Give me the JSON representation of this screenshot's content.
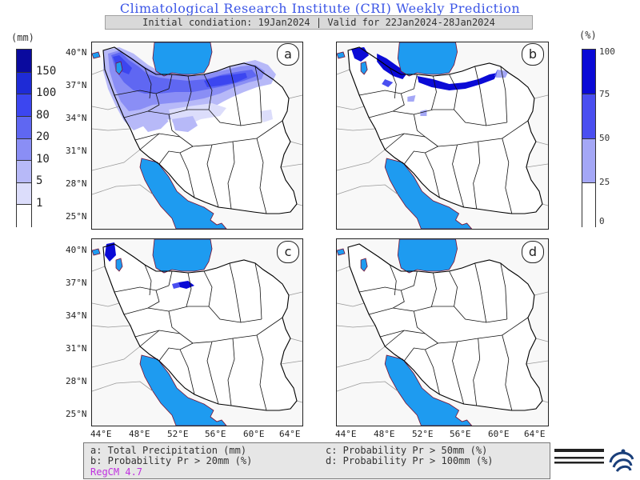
{
  "header": {
    "title": "Climatological Research Institute (CRI) Weekly Prediction",
    "subtitle": "Initial condiation: 19Jan2024 | Valid for 22Jan2024-28Jan2024"
  },
  "colorbar_left": {
    "unit": "(mm)",
    "labels": [
      "150",
      "100",
      "80",
      "20",
      "10",
      "5",
      "1"
    ],
    "colors": [
      "#0a0a9e",
      "#1e2bd6",
      "#3c46f0",
      "#5f67f2",
      "#8a8ef5",
      "#b7b9f8",
      "#dcddfb",
      "#ffffff"
    ]
  },
  "colorbar_right": {
    "unit": "(%)",
    "labels": [
      "100",
      "75",
      "50",
      "25",
      "0"
    ],
    "colors": [
      "#0a0ad6",
      "#4a4ff0",
      "#a4a7f6",
      "#ffffff"
    ]
  },
  "panels": {
    "a": {
      "label": "a"
    },
    "b": {
      "label": "b"
    },
    "c": {
      "label": "c"
    },
    "d": {
      "label": "d"
    }
  },
  "axes": {
    "lat_labels": [
      "40°N",
      "37°N",
      "34°N",
      "31°N",
      "28°N",
      "25°N"
    ],
    "lon_labels": [
      "44°E",
      "48°E",
      "52°E",
      "56°E",
      "60°E",
      "64°E"
    ]
  },
  "legend": {
    "a": "a: Total Precipitation (mm)",
    "b": "b: Probability Pr > 20mm (%)",
    "c": "c: Probability Pr > 50mm (%)",
    "d": "d: Probability Pr > 100mm (%)",
    "model": "RegCM 4.7"
  },
  "logo": {
    "icon": "institute-logo-icon"
  },
  "colors": {
    "water": "#1e9bf0",
    "title": "#3b55e6",
    "model": "#c030e0"
  }
}
